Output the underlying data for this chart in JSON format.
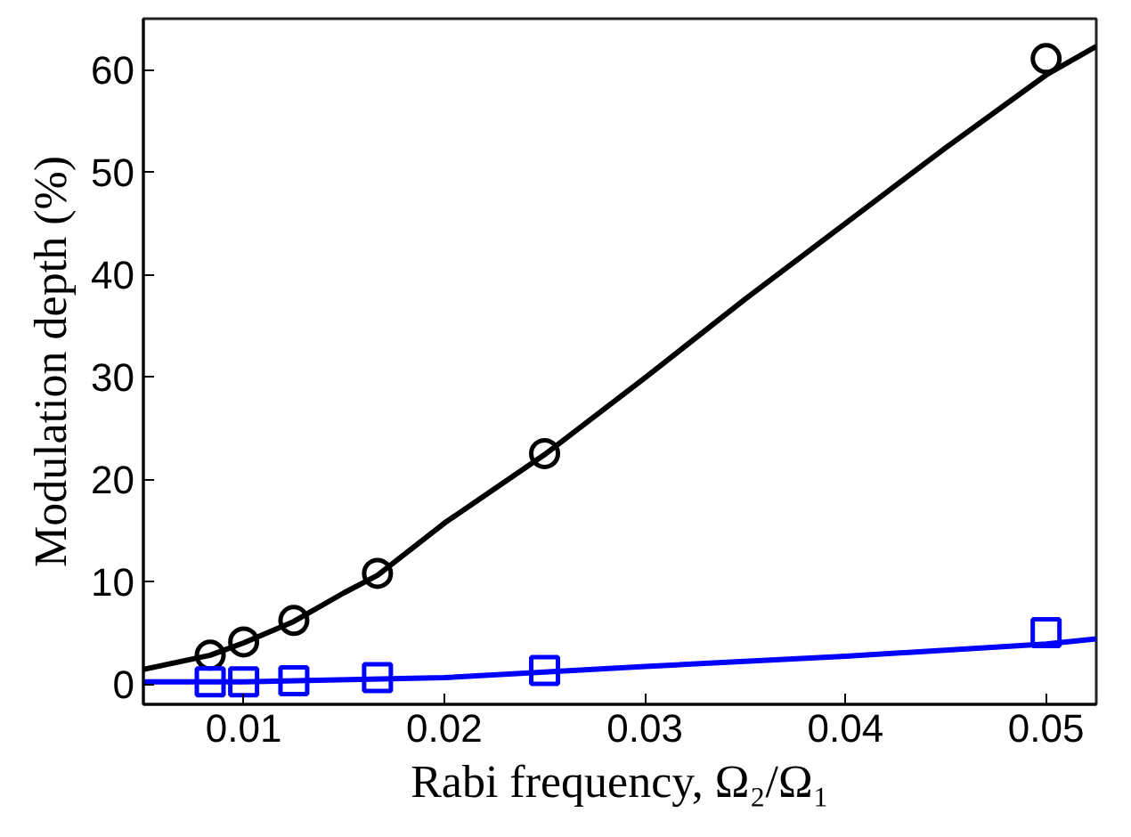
{
  "chart_data": {
    "type": "scatter",
    "xlabel": "Rabi frequency, Ω₂/Ω₁",
    "ylabel": "Modulation depth (%)",
    "xlim": [
      0.005,
      0.0525
    ],
    "ylim": [
      -2,
      65
    ],
    "xticks": [
      0.01,
      0.02,
      0.03,
      0.04,
      0.05
    ],
    "yticks": [
      0,
      10,
      20,
      30,
      40,
      50,
      60
    ],
    "grid": false,
    "series": [
      {
        "marker": "circle",
        "color": "#000000",
        "x": [
          0.00833,
          0.01,
          0.0125,
          0.01667,
          0.025,
          0.05
        ],
        "values": [
          2.8,
          4.1,
          6.2,
          10.8,
          22.5,
          61.1
        ]
      },
      {
        "marker": "square",
        "color": "#0000ff",
        "x": [
          0.00833,
          0.01,
          0.0125,
          0.01667,
          0.025,
          0.05
        ],
        "values": [
          0.2,
          0.2,
          0.3,
          0.6,
          1.3,
          5.0
        ]
      },
      {
        "type": "line",
        "color": "#000000",
        "x": [
          0.005,
          0.00833,
          0.01,
          0.0125,
          0.015,
          0.01667,
          0.02,
          0.025,
          0.03,
          0.035,
          0.04,
          0.045,
          0.05,
          0.0525
        ],
        "values": [
          1.4,
          2.8,
          4.0,
          6.1,
          8.9,
          10.6,
          15.7,
          22.4,
          29.9,
          37.6,
          45.0,
          52.4,
          59.5,
          62.3
        ]
      },
      {
        "type": "line",
        "color": "#0000ff",
        "x": [
          0.005,
          0.01,
          0.02,
          0.03,
          0.04,
          0.05,
          0.0525
        ],
        "values": [
          0.2,
          0.2,
          0.6,
          1.7,
          2.7,
          3.9,
          4.4
        ]
      }
    ]
  }
}
